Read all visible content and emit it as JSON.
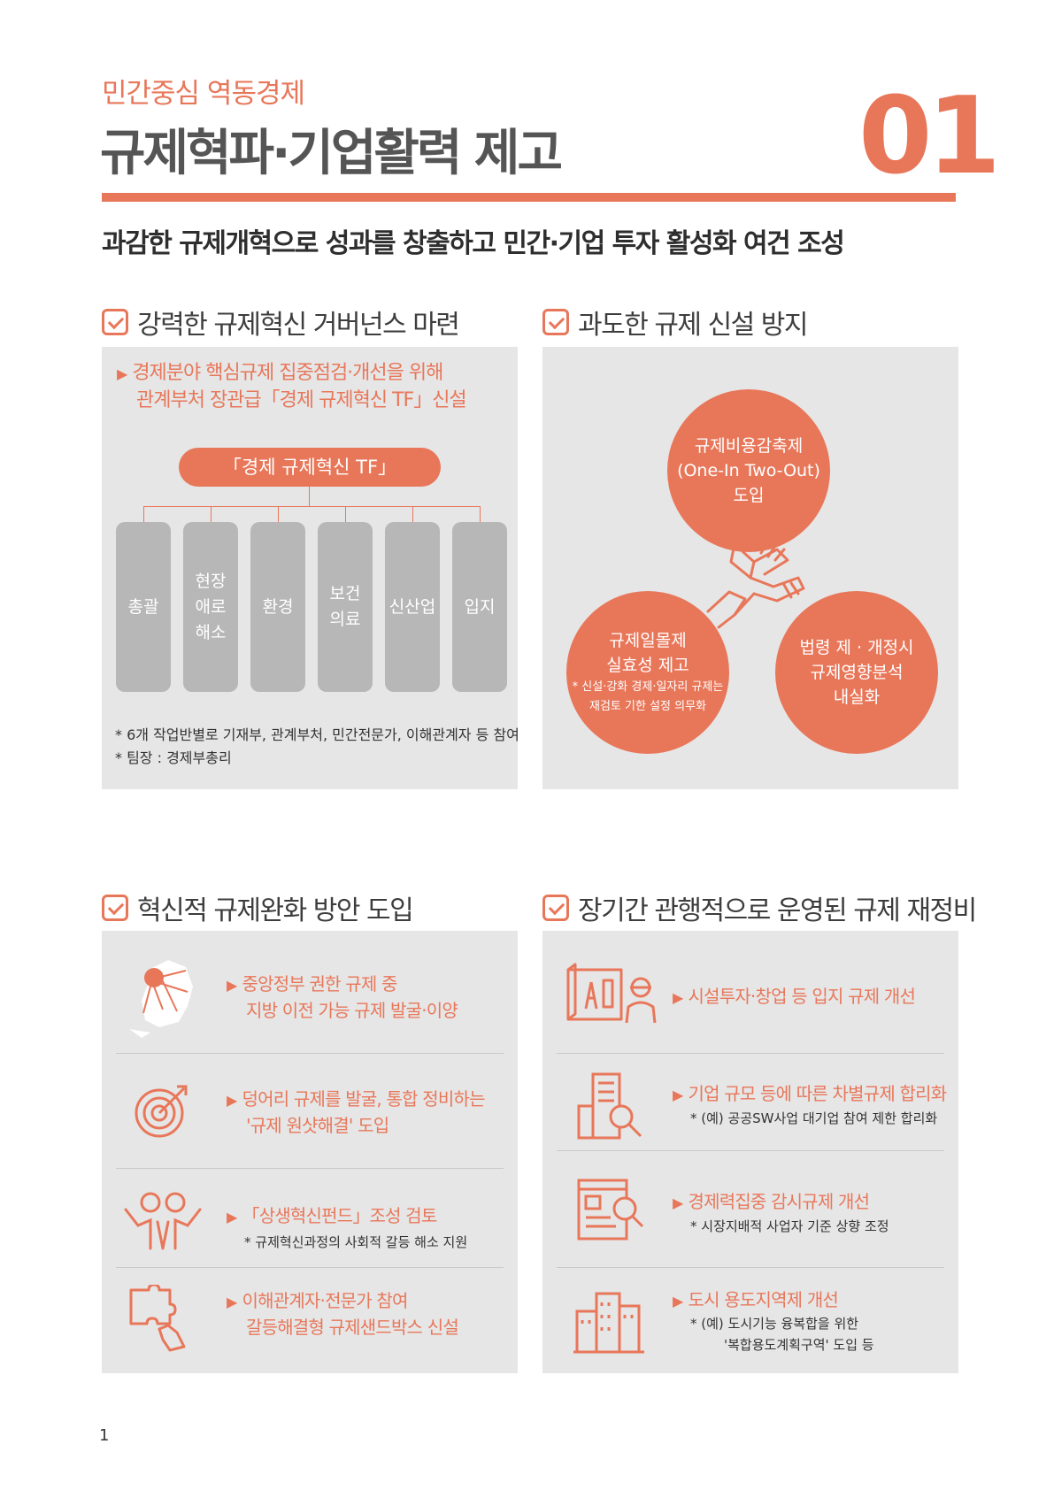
{
  "header": {
    "subtitle": "민간중심 역동경제",
    "title": "규제혁파·기업활력 제고",
    "number": "01",
    "lead": "과감한 규제개혁으로 성과를 창출하고 민간·기업 투자 활성화 여건 조성"
  },
  "sections": {
    "s1": {
      "title": "강력한 규제혁신 거버넌스 마련",
      "bullet_line1": "경제분야 핵심규제 집중점검·개선을 위해",
      "bullet_line2": "관계부처 장관급「경제 규제혁신 TF」신설",
      "tf_label": "「경제 규제혁신 TF」",
      "teams": [
        "총괄",
        "현장\n애로\n해소",
        "환경",
        "보건\n의료",
        "신산업",
        "입지"
      ],
      "note1": "* 6개 작업반별로 기재부, 관계부처, 민간전문가, 이해관계자 등 참여",
      "note2": "* 팀장 : 경제부총리"
    },
    "s2": {
      "title": "과도한 규제 신설 방지",
      "circle_top": [
        "규제비용감축제",
        "(One-In Two-Out)",
        "도입"
      ],
      "circle_left": [
        "규제일몰제",
        "실효성 제고"
      ],
      "circle_left_note": [
        "* 신설·강화 경제·일자리 규제는",
        "재검토 기한 설정 의무화"
      ],
      "circle_right": [
        "법령 제 · 개정시",
        "규제영향분석",
        "내실화"
      ]
    },
    "s3": {
      "title": "혁신적 규제완화 방안 도입",
      "rows": [
        {
          "line1": "중앙정부 권한 규제 중",
          "line2": "지방 이전 가능 규제 발굴·이양",
          "note": ""
        },
        {
          "line1": "덩어리 규제를 발굴, 통합 정비하는",
          "line2": "'규제 원샷해결' 도입",
          "note": ""
        },
        {
          "line1": "「상생혁신펀드」조성 검토",
          "line2": "",
          "note": "*  규제혁신과정의 사회적 갈등 해소 지원"
        },
        {
          "line1": "이해관계자·전문가 참여",
          "line2": "갈등해결형 규제샌드박스 신설",
          "note": ""
        }
      ]
    },
    "s4": {
      "title": "장기간 관행적으로 운영된 규제 재정비",
      "rows": [
        {
          "line1": "시설투자·창업 등 입지 규제 개선",
          "note1": "",
          "note2": ""
        },
        {
          "line1": "기업 규모 등에 따른 차별규제 합리화",
          "note1": "*  (예) 공공SW사업 대기업 참여 제한 합리화",
          "note2": ""
        },
        {
          "line1": "경제력집중 감시규제 개선",
          "note1": "*  시장지배적 사업자 기준 상향 조정",
          "note2": ""
        },
        {
          "line1": "도시 용도지역제 개선",
          "note1": "*  (예) 도시기능 융복합을 위한",
          "note2": "'복합용도계획구역' 도입 등"
        }
      ]
    }
  },
  "page_number": "1",
  "colors": {
    "accent": "#e8775a",
    "panel": "#e6e6e6",
    "column": "#b7b7b7"
  }
}
